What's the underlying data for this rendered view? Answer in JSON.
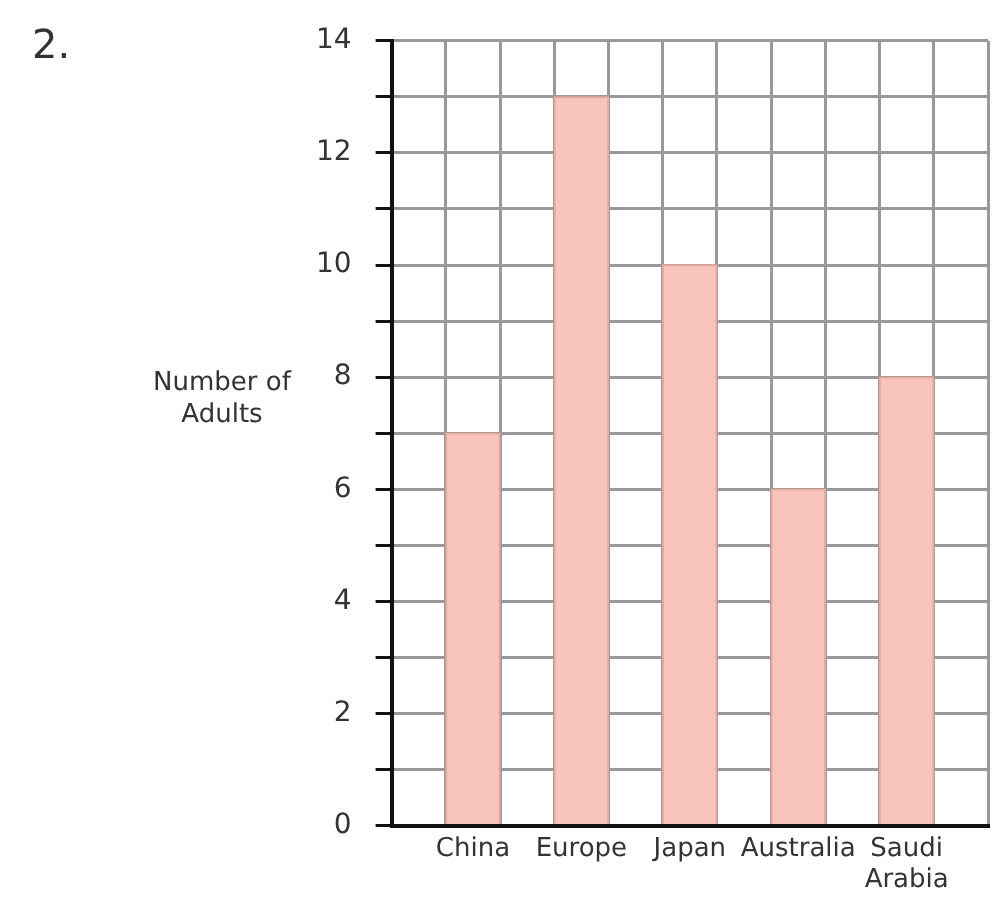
{
  "chart_data": {
    "type": "bar",
    "categories": [
      "China",
      "Europe",
      "Japan",
      "Australia",
      "Saudi Arabia"
    ],
    "values": [
      7,
      13,
      10,
      6,
      8
    ],
    "color": "#f8c4bb",
    "ylabel": "Number of Adults",
    "ylim": [
      0,
      14
    ],
    "yticks": [
      0,
      {
        "value": 1,
        "label": null
      },
      2,
      {
        "value": 3,
        "label": null
      },
      4,
      {
        "value": 5,
        "label": null
      },
      6,
      {
        "value": 7,
        "label": null
      },
      8,
      {
        "value": 9,
        "label": null
      },
      10,
      {
        "value": 11,
        "label": null
      },
      12,
      {
        "value": 13,
        "label": null
      },
      14
    ],
    "grid": true,
    "legend": false,
    "annotations": [
      "2."
    ]
  }
}
